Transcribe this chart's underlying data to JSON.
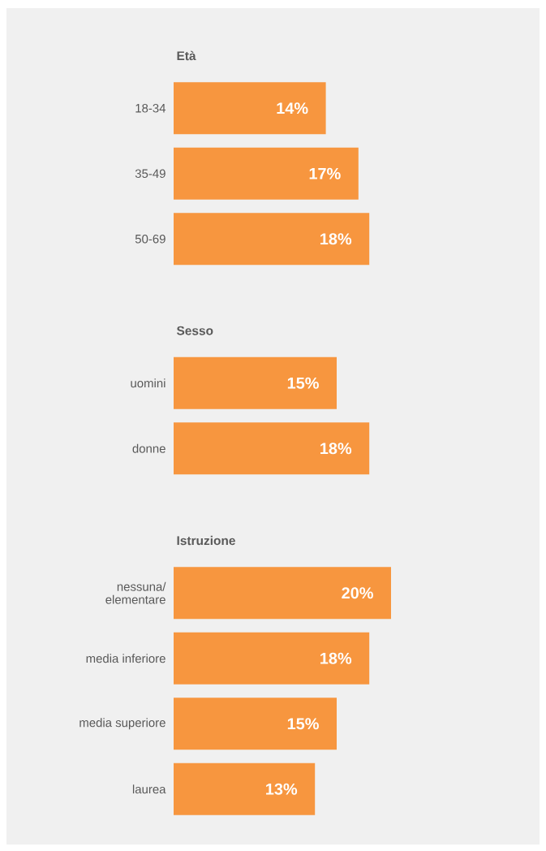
{
  "chart_data": [
    {
      "type": "bar",
      "orientation": "horizontal",
      "title": "Età",
      "categories": [
        "18-34",
        "35-49",
        "50-69"
      ],
      "values": [
        14,
        17,
        18
      ],
      "value_labels": [
        "14%",
        "17%",
        "18%"
      ],
      "color": "#f7963f"
    },
    {
      "type": "bar",
      "orientation": "horizontal",
      "title": "Sesso",
      "categories": [
        "uomini",
        "donne"
      ],
      "values": [
        15,
        18
      ],
      "value_labels": [
        "15%",
        "18%"
      ],
      "color": "#f7963f"
    },
    {
      "type": "bar",
      "orientation": "horizontal",
      "title": "Istruzione",
      "categories": [
        "nessuna/ elementare",
        "media inferiore",
        "media superiore",
        "laurea"
      ],
      "values": [
        20,
        18,
        15,
        13
      ],
      "value_labels": [
        "20%",
        "18%",
        "15%",
        "13%"
      ],
      "color": "#f7963f"
    }
  ]
}
